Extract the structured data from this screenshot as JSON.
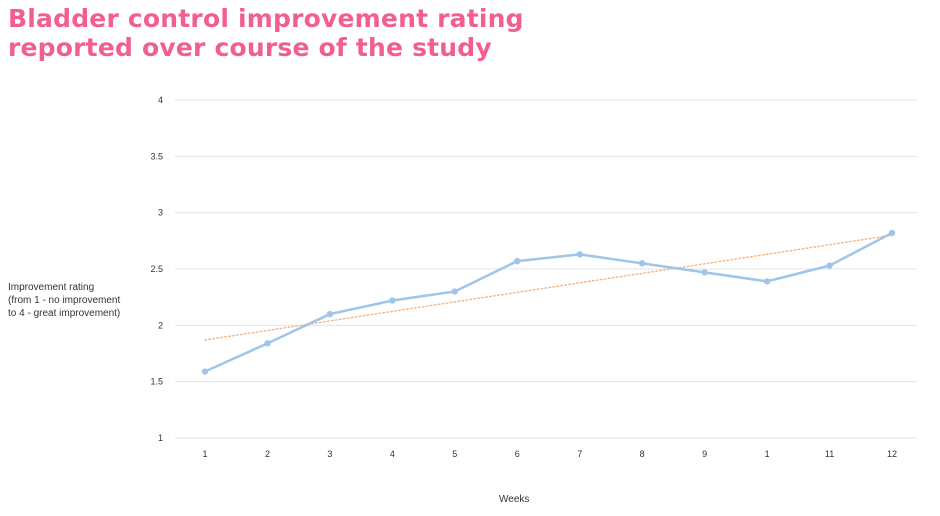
{
  "chart_data": {
    "type": "line",
    "title_lines": [
      "Bladder control improvement rating",
      "reported over course of the study"
    ],
    "ylabel_lines": [
      "Improvement rating",
      "(from 1 - no improvement",
      "to 4 - great improvement)"
    ],
    "xlabel": "Weeks",
    "categories": [
      "1",
      "2",
      "3",
      "4",
      "5",
      "6",
      "7",
      "8",
      "9",
      "1",
      "11",
      "12"
    ],
    "series": [
      {
        "values": [
          1.59,
          1.84,
          2.1,
          2.22,
          2.3,
          2.57,
          2.63,
          2.55,
          2.47,
          2.39,
          2.53,
          2.82
        ],
        "color": "#9fc5e8"
      }
    ],
    "trendline": {
      "start": 1.87,
      "end": 2.8,
      "color": "#f4b183",
      "style": "dotted"
    },
    "ylim": [
      1,
      4
    ],
    "yticks": [
      "1",
      "1.5",
      "2",
      "2.5",
      "3",
      "3.5",
      "4"
    ],
    "grid": true,
    "legend": "none"
  }
}
